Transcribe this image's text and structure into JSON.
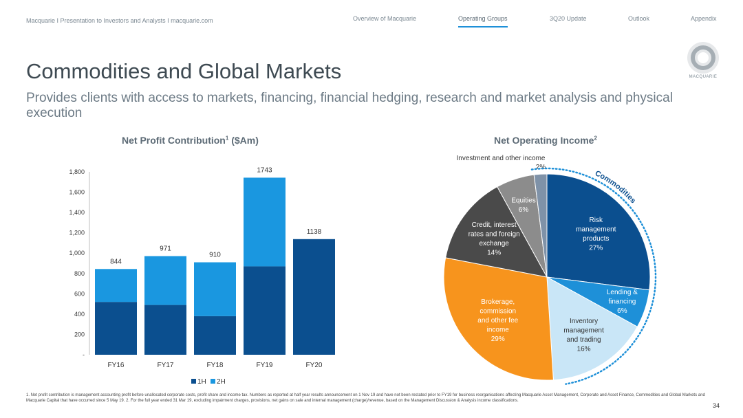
{
  "header": {
    "breadcrumb": "Macquarie  I  Presentation to Investors and Analysts I  macquarie.com",
    "nav": [
      {
        "label": "Overview of Macquarie"
      },
      {
        "label": "Operating Groups"
      },
      {
        "label": "3Q20 Update"
      },
      {
        "label": "Outlook"
      },
      {
        "label": "Appendix"
      }
    ],
    "active_nav": "Operating Groups",
    "logo_text": "MACQUARIE"
  },
  "page_title": "Commodities and Global Markets",
  "subtitle": "Provides clients with access to markets, financing, financial hedging, research and market analysis and physical execution",
  "colors": {
    "first_half": "#0b4f8f",
    "second_half": "#1a97e0",
    "accent_blue": "#1e90d8",
    "orange": "#f7941d",
    "light_blue": "#c9e6f7",
    "dark_grey": "#4a4a4a",
    "mid_grey": "#8c8c8c",
    "slate": "#7f92a8"
  },
  "bar_chart": {
    "title": "Net Profit Contribution",
    "title_sup": "1",
    "title_suffix": " ($Am)",
    "legend": [
      "1H",
      "2H"
    ]
  },
  "pie_chart": {
    "title": "Net Operating Income",
    "title_sup": "2",
    "arc_label": "Commodities"
  },
  "chart_data": [
    {
      "type": "bar",
      "stacked": true,
      "title": "Net Profit Contribution1 ($Am)",
      "categories": [
        "FY16",
        "FY17",
        "FY18",
        "FY19",
        "FY20"
      ],
      "series": [
        {
          "name": "1H",
          "values": [
            520,
            490,
            380,
            870,
            1138
          ]
        },
        {
          "name": "2H",
          "values": [
            324,
            481,
            530,
            873,
            0
          ]
        }
      ],
      "totals": [
        844,
        971,
        910,
        1743,
        1138
      ],
      "ylim": [
        0,
        1800
      ],
      "yticks": [
        "-",
        "200",
        "400",
        "600",
        "800",
        "1,000",
        "1,200",
        "1,400",
        "1,600",
        "1,800"
      ],
      "legend_position": "bottom"
    },
    {
      "type": "pie",
      "title": "Net Operating Income2",
      "slices": [
        {
          "label": [
            "Risk",
            "management",
            "products"
          ],
          "pct": "27%",
          "value": 27
        },
        {
          "label": [
            "Lending &",
            "financing"
          ],
          "pct": "6%",
          "value": 6
        },
        {
          "label": [
            "Inventory",
            "management",
            "and trading"
          ],
          "pct": "16%",
          "value": 16
        },
        {
          "label": [
            "Brokerage,",
            "commission",
            "and other fee",
            "income"
          ],
          "pct": "29%",
          "value": 29
        },
        {
          "label": [
            "Credit, interest",
            "rates and foreign",
            "exchange"
          ],
          "pct": "14%",
          "value": 14
        },
        {
          "label": [
            "Equities"
          ],
          "pct": "6%",
          "value": 6
        },
        {
          "label": [
            "Investment and other income"
          ],
          "pct": "2%",
          "value": 2
        }
      ],
      "group_label": "Commodities"
    }
  ],
  "footnote": "1. Net profit contribution is management accounting profit before unallocated corporate costs, profit share and income tax.  Numbers as reported at half year results announcement on 1 Nov 19 and have not been restated prior to FY19 for business reorganisations affecting Macquarie Asset Management, Corporate and Asset Finance, Commodities and Global Markets and Macquarie Capital that have occurred since 5 May 19.  2. For the full year ended 31 Mar 19, excluding impairment charges, provisions, net gains on sale and internal management (charge)/revenue, based on the Management Discussion & Analysis income classifications.",
  "page_number": "34"
}
